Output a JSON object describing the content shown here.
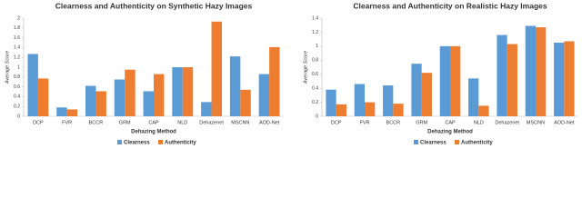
{
  "chart_data": [
    {
      "type": "bar",
      "title": "Clearness and Authenticity on Synthetic Hazy Images",
      "x_label": "Dehazing Method",
      "y_label": "Average Score",
      "categories": [
        "DCP",
        "FVR",
        "BCCR",
        "GRM",
        "CAP",
        "NLD",
        "Dehazenet",
        "MSCNN",
        "AOD-Net"
      ],
      "series": [
        {
          "name": "Clearness",
          "color": "#5b9bd5",
          "values": [
            1.27,
            0.18,
            0.62,
            0.75,
            0.51,
            1.0,
            0.29,
            1.22,
            0.86
          ]
        },
        {
          "name": "Authenticity",
          "color": "#ed7d31",
          "values": [
            0.77,
            0.14,
            0.51,
            0.95,
            0.86,
            1.0,
            1.93,
            0.54,
            1.41
          ]
        }
      ],
      "ylim": [
        0,
        2
      ],
      "yticks": [
        0,
        0.2,
        0.4,
        0.6,
        0.8,
        1,
        1.2,
        1.4,
        1.6,
        1.8,
        2
      ],
      "grid": false,
      "legend": "bottom"
    },
    {
      "type": "bar",
      "title": "Clearness and Authenticity on Realistic Hazy Images",
      "x_label": "Dehazing Method",
      "y_label": "Average Score",
      "categories": [
        "DCP",
        "FVR",
        "BCCR",
        "GRM",
        "CAP",
        "NLD",
        "Dehazenet",
        "MSCNN",
        "AOD-Net"
      ],
      "series": [
        {
          "name": "Clearness",
          "color": "#5b9bd5",
          "values": [
            0.38,
            0.46,
            0.44,
            0.75,
            1.0,
            0.54,
            1.16,
            1.29,
            1.05
          ]
        },
        {
          "name": "Authenticity",
          "color": "#ed7d31",
          "values": [
            0.17,
            0.2,
            0.18,
            0.62,
            1.0,
            0.15,
            1.03,
            1.27,
            1.07
          ]
        }
      ],
      "ylim": [
        0,
        1.4
      ],
      "yticks": [
        0,
        0.2,
        0.4,
        0.6,
        0.8,
        1,
        1.2,
        1.4
      ],
      "grid": false,
      "legend": "bottom"
    }
  ]
}
